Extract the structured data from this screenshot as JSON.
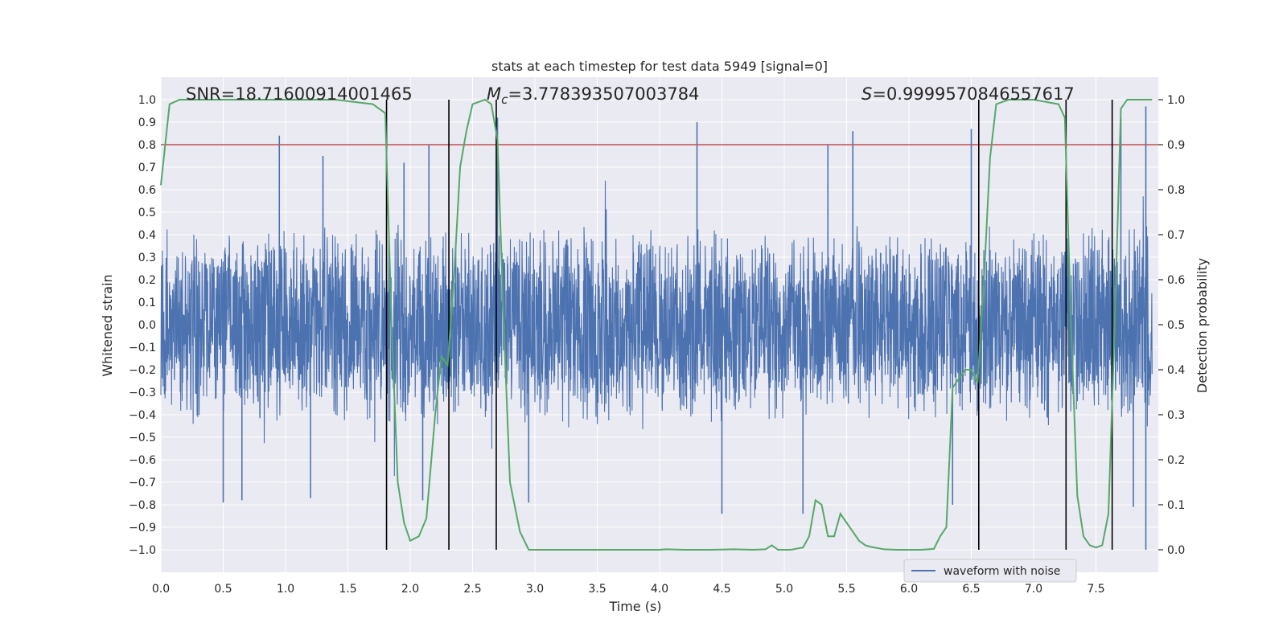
{
  "chart_data": {
    "type": "line",
    "title": "stats at each timestep for test data 5949 [signal=0]",
    "xlabel": "Time (s)",
    "ylabel": "Whitened strain",
    "y2label": "Detection probability",
    "xlim": [
      0.0,
      8.0
    ],
    "ylim": [
      -1.1,
      1.1
    ],
    "y2lim": [
      -0.05,
      1.05
    ],
    "xticks": [
      0.0,
      0.5,
      1.0,
      1.5,
      2.0,
      2.5,
      3.0,
      3.5,
      4.0,
      4.5,
      5.0,
      5.5,
      6.0,
      6.5,
      7.0,
      7.5
    ],
    "xtick_labels": [
      "0.0",
      "0.5",
      "1.0",
      "1.5",
      "2.0",
      "2.5",
      "3.0",
      "3.5",
      "4.0",
      "4.5",
      "5.0",
      "5.5",
      "6.0",
      "6.5",
      "7.0",
      "7.5"
    ],
    "yticks": [
      1.0,
      0.9,
      0.8,
      0.7,
      0.6,
      0.5,
      0.4,
      0.3,
      0.2,
      0.1,
      0.0,
      -0.1,
      -0.2,
      -0.3,
      -0.4,
      -0.5,
      -0.6,
      -0.7,
      -0.8,
      -0.9,
      -1.0
    ],
    "ytick_labels": [
      "1.0",
      "0.9",
      "0.8",
      "0.7",
      "0.6",
      "0.5",
      "0.4",
      "0.3",
      "0.2",
      "0.1",
      "0.0",
      "−0.1",
      "−0.2",
      "−0.3",
      "−0.4",
      "−0.5",
      "−0.6",
      "−0.7",
      "−0.8",
      "−0.9",
      "−1.0"
    ],
    "y2ticks": [
      1.0,
      0.9,
      0.8,
      0.7,
      0.6,
      0.5,
      0.4,
      0.3,
      0.2,
      0.1,
      0.0
    ],
    "y2tick_labels": [
      "1.0",
      "0.9",
      "0.8",
      "0.7",
      "0.6",
      "0.5",
      "0.4",
      "0.3",
      "0.2",
      "0.1",
      "0.0"
    ],
    "annotations": {
      "snr": "SNR=18.71600914001465",
      "mc_symbol": "M",
      "mc_sub": "c",
      "mc_value": "=3.778393507003784",
      "s_symbol": "S",
      "s_value": "=0.9999570846557617"
    },
    "series": [
      {
        "name": "waveform with noise",
        "axis": "left",
        "color": "#4c72b0",
        "note": "dense noisy whitened strain, typical envelope about ±0.4 with spikes up to about ±1.0",
        "envelope": {
          "typical_upper": 0.4,
          "typical_lower": -0.4,
          "max": 0.97,
          "min": -1.0
        },
        "spikes_up": [
          [
            0.95,
            0.84
          ],
          [
            1.3,
            0.75
          ],
          [
            1.95,
            0.72
          ],
          [
            2.15,
            0.8
          ],
          [
            2.7,
            0.92
          ],
          [
            4.3,
            0.9
          ],
          [
            5.35,
            0.8
          ],
          [
            5.55,
            0.86
          ],
          [
            6.5,
            0.87
          ],
          [
            7.7,
            0.92
          ],
          [
            7.9,
            0.97
          ]
        ],
        "spikes_down": [
          [
            0.5,
            -0.79
          ],
          [
            0.65,
            -0.78
          ],
          [
            1.2,
            -0.77
          ],
          [
            2.1,
            -0.78
          ],
          [
            2.95,
            -0.79
          ],
          [
            4.5,
            -0.84
          ],
          [
            5.15,
            -0.84
          ],
          [
            6.35,
            -0.8
          ],
          [
            7.8,
            -0.81
          ],
          [
            7.9,
            -1.0
          ]
        ]
      },
      {
        "name": "detection probability",
        "axis": "right",
        "color": "#55a868",
        "x": [
          0.0,
          0.07,
          0.15,
          0.3,
          0.6,
          1.0,
          1.4,
          1.7,
          1.8,
          1.85,
          1.9,
          1.95,
          2.0,
          2.07,
          2.13,
          2.2,
          2.25,
          2.3,
          2.35,
          2.4,
          2.45,
          2.5,
          2.6,
          2.65,
          2.7,
          2.75,
          2.8,
          2.88,
          2.95,
          3.1,
          3.5,
          3.8,
          4.0,
          4.05,
          4.2,
          4.4,
          4.6,
          4.75,
          4.85,
          4.9,
          4.95,
          5.05,
          5.15,
          5.2,
          5.25,
          5.3,
          5.35,
          5.4,
          5.45,
          5.5,
          5.55,
          5.6,
          5.65,
          5.7,
          5.8,
          5.9,
          6.0,
          6.1,
          6.2,
          6.25,
          6.3,
          6.35,
          6.4,
          6.45,
          6.5,
          6.55,
          6.6,
          6.65,
          6.7,
          6.8,
          7.0,
          7.2,
          7.25,
          7.3,
          7.35,
          7.4,
          7.45,
          7.5,
          7.55,
          7.6,
          7.65,
          7.7,
          7.75,
          7.8,
          7.95
        ],
        "y": [
          0.81,
          0.99,
          1.0,
          1.0,
          1.0,
          1.0,
          1.0,
          0.99,
          0.97,
          0.5,
          0.15,
          0.06,
          0.02,
          0.03,
          0.07,
          0.3,
          0.43,
          0.41,
          0.6,
          0.85,
          0.93,
          0.99,
          1.0,
          0.99,
          0.91,
          0.5,
          0.15,
          0.04,
          0.0,
          0.0,
          0.0,
          0.0,
          0.0,
          0.001,
          0.0,
          0.0,
          0.001,
          0.0,
          0.001,
          0.01,
          0.0,
          0.0,
          0.005,
          0.03,
          0.11,
          0.1,
          0.03,
          0.03,
          0.08,
          0.06,
          0.04,
          0.02,
          0.01,
          0.006,
          0.001,
          0.0,
          0.0,
          0.0,
          0.002,
          0.03,
          0.05,
          0.36,
          0.38,
          0.4,
          0.4,
          0.37,
          0.59,
          0.87,
          0.99,
          1.0,
          1.0,
          0.99,
          0.96,
          0.5,
          0.12,
          0.03,
          0.01,
          0.005,
          0.01,
          0.08,
          0.5,
          0.98,
          1.0,
          1.0,
          1.0
        ]
      }
    ],
    "threshold": {
      "axis": "right",
      "value": 0.9,
      "color": "#c44e52"
    },
    "vertical_lines": {
      "x": [
        1.81,
        2.31,
        2.69,
        6.56,
        7.26,
        7.63
      ],
      "y2_from": 0.0,
      "y2_to": 1.0,
      "color": "#000000"
    },
    "legend": {
      "position": "lower-right",
      "entries": [
        "waveform with noise"
      ]
    }
  }
}
